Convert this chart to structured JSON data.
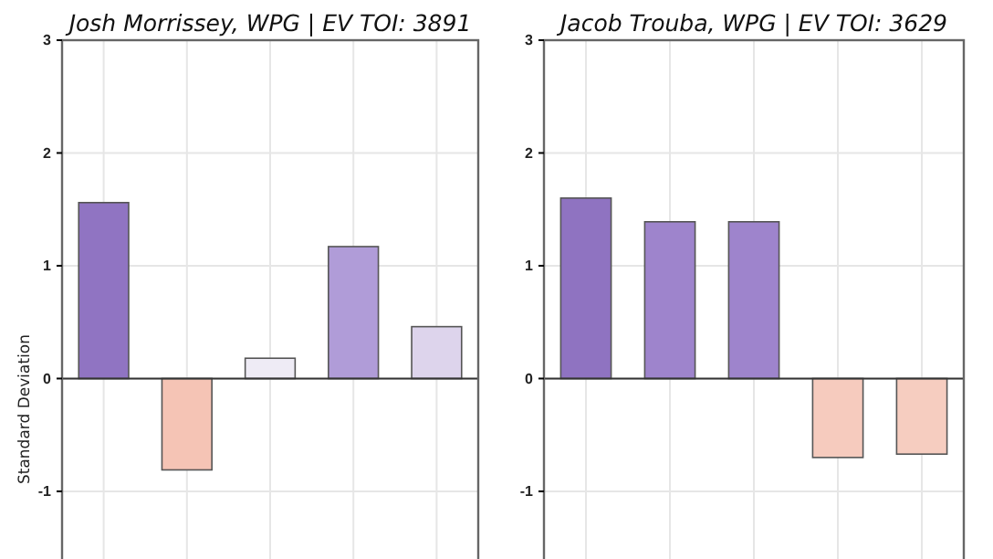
{
  "chart_data": [
    {
      "type": "bar",
      "title": "Josh Morrissey, WPG  |  EV TOI: 3891",
      "ylabel": "Standard Deviation",
      "categories": [
        null,
        null,
        null,
        null,
        null
      ],
      "values": [
        1.56,
        -0.81,
        0.18,
        1.17,
        0.46
      ],
      "colors": [
        "#9074c2",
        "#f5c4b5",
        "#eeebf5",
        "#b09cd8",
        "#ddd4ec"
      ],
      "ylim": [
        -1.6,
        3
      ],
      "yticks": [
        -1,
        0,
        1,
        2,
        3
      ],
      "grid": true,
      "ref_lines": [
        {
          "axis": "y",
          "value": 0,
          "color": "#333333"
        }
      ]
    },
    {
      "type": "bar",
      "title": "Jacob Trouba, WPG  |  EV TOI: 3629",
      "categories": [
        null,
        null,
        null,
        null,
        null
      ],
      "values": [
        1.6,
        1.39,
        1.39,
        -0.7,
        -0.67
      ],
      "colors": [
        "#8f73c1",
        "#9e84cc",
        "#9e84cc",
        "#f6cbbe",
        "#f6cdc0"
      ],
      "ylim": [
        -1.6,
        3
      ],
      "yticks": [
        -1,
        0,
        1,
        2,
        3
      ],
      "grid": true,
      "ref_lines": [
        {
          "axis": "y",
          "value": 0,
          "color": "#333333"
        }
      ]
    }
  ]
}
